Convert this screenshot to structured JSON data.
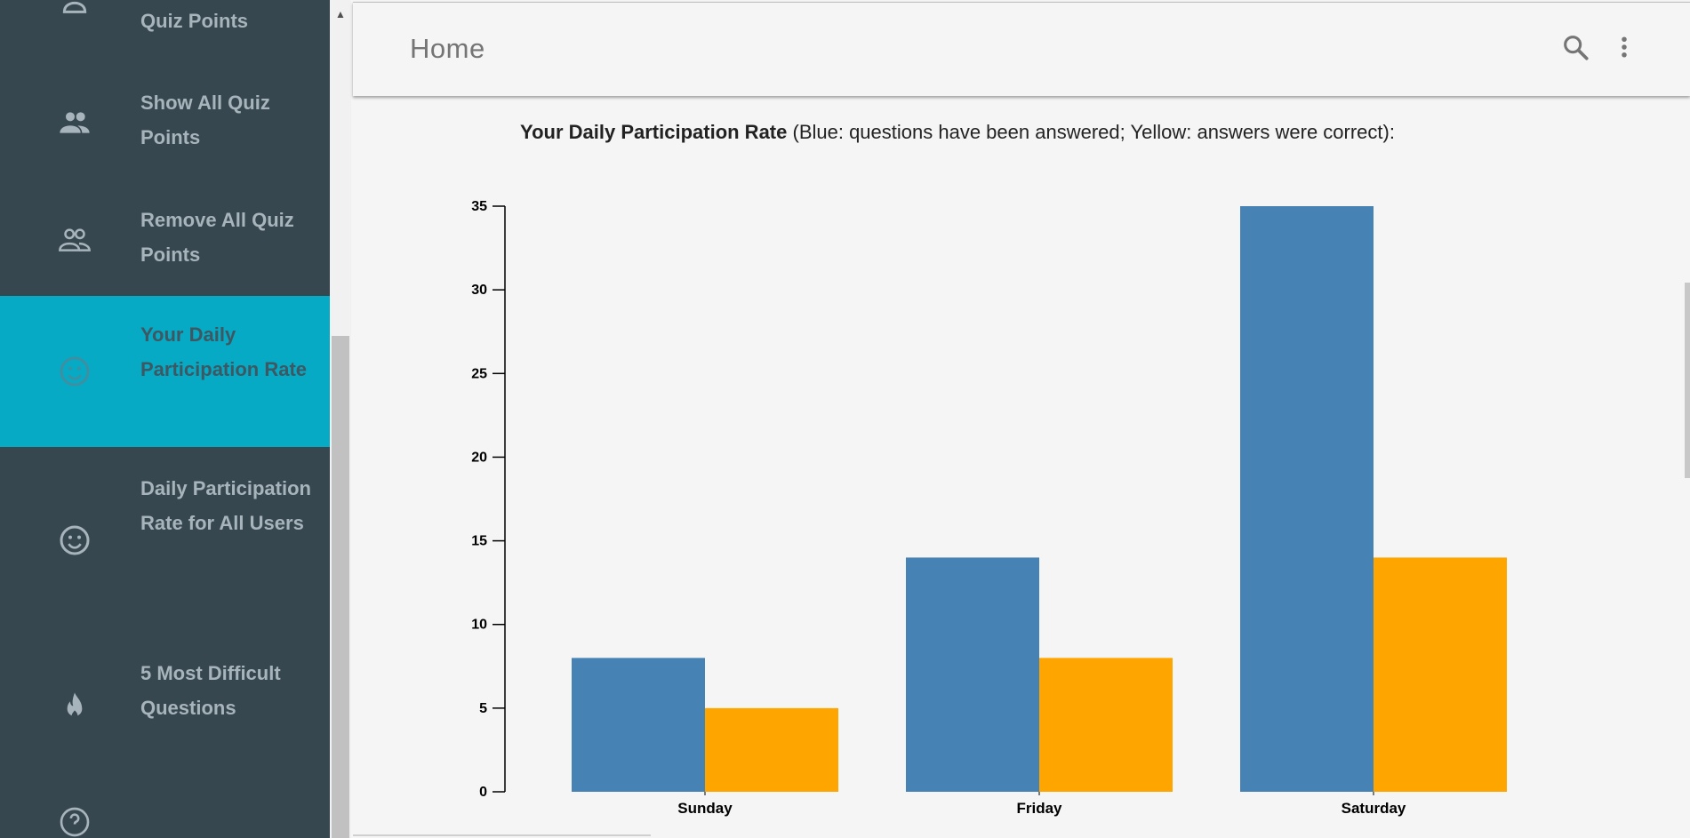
{
  "sidebar": {
    "items": [
      {
        "label": "Quiz Points",
        "icon": "person-icon"
      },
      {
        "label": "Show All Quiz Points",
        "icon": "people-icon"
      },
      {
        "label": "Remove All Quiz Points",
        "icon": "people-outline-icon"
      },
      {
        "label": "Your Daily Participation Rate",
        "icon": "smiley-icon",
        "active": true
      },
      {
        "label": "Daily Participation Rate for All Users",
        "icon": "smiley-icon"
      },
      {
        "label": "5 Most Difficult Questions",
        "icon": "flame-icon"
      },
      {
        "label": "",
        "icon": "help-circle-icon"
      }
    ]
  },
  "header": {
    "title": "Home",
    "search_icon": "search-icon",
    "menu_icon": "more-vert-icon"
  },
  "main": {
    "caption_bold": "Your Daily Participation Rate",
    "caption_rest": " (Blue: questions have been answered; Yellow: answers were correct):"
  },
  "chart_data": {
    "type": "bar",
    "categories": [
      "Sunday",
      "Friday",
      "Saturday"
    ],
    "series": [
      {
        "values": [
          8,
          14,
          35
        ],
        "color": "#4682b4"
      },
      {
        "values": [
          5,
          8,
          14
        ],
        "color": "#ffa500"
      }
    ],
    "title": "",
    "xlabel": "",
    "ylabel": "",
    "ylim": [
      0,
      35
    ],
    "yticks": [
      0,
      5,
      10,
      15,
      20,
      25,
      30,
      35
    ],
    "grid": false
  },
  "colors": {
    "sidebar_bg": "#37474f",
    "active_bg": "#07aac4",
    "sidebar_text": "#a7b4bb",
    "page_bg": "#f5f5f5"
  }
}
